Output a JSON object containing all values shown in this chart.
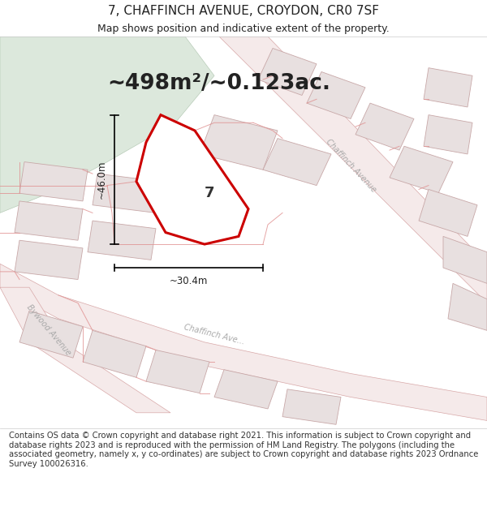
{
  "title_line1": "7, CHAFFINCH AVENUE, CROYDON, CR0 7SF",
  "title_line2": "Map shows position and indicative extent of the property.",
  "area_text": "~498m²/~0.123ac.",
  "dim_width": "~30.4m",
  "dim_height": "~46.0m",
  "property_label": "7",
  "footer_text": "Contains OS data © Crown copyright and database right 2021. This information is subject to Crown copyright and database rights 2023 and is reproduced with the permission of HM Land Registry. The polygons (including the associated geometry, namely x, y co-ordinates) are subject to Crown copyright and database rights 2023 Ordnance Survey 100026316.",
  "bg_color": "#ffffff",
  "map_bg": "#f7f0f0",
  "green_color": "#dce8dc",
  "building_fill": "#e8e0e0",
  "building_edge": "#c8a8a8",
  "road_fill": "#f5eaea",
  "road_edge": "#d8a8a8",
  "property_fill": "#ffffff",
  "property_edge": "#cc0000",
  "plot_line_color": "#e09090",
  "title_fontsize": 11,
  "subtitle_fontsize": 9,
  "area_fontsize": 19,
  "label_fontsize": 13,
  "footer_fontsize": 7.2,
  "road_label_color": "#aaaaaa",
  "road_label_fontsize": 7
}
